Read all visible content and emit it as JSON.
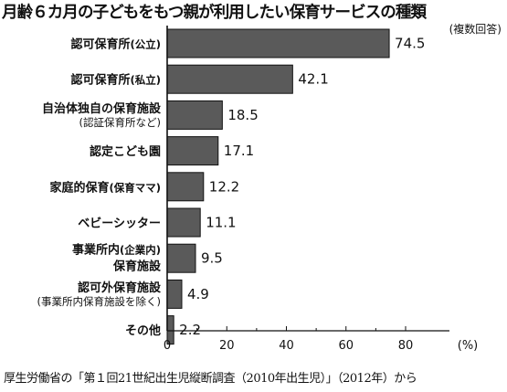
{
  "chart_data": {
    "type": "bar",
    "orientation": "horizontal",
    "title": "月齢６カ月の子どもをもつ親が利用したい保育サービスの種類",
    "note": "(複数回答)",
    "unit": "(%)",
    "xlim": [
      0,
      80
    ],
    "xticks": [
      "0",
      "20",
      "40",
      "60",
      "80"
    ],
    "categories": [
      {
        "main": "認可保育所",
        "sub": "(公立)",
        "value": 74.5,
        "value_label": "74.5"
      },
      {
        "main": "認可保育所",
        "sub": "(私立)",
        "value": 42.1,
        "value_label": "42.1"
      },
      {
        "main": "自治体独自の保育施設",
        "sub2": "(認証保育所など)",
        "value": 18.5,
        "value_label": "18.5"
      },
      {
        "main": "認定こども園",
        "value": 17.1,
        "value_label": "17.1"
      },
      {
        "main": "家庭的保育",
        "sub": "(保育ママ)",
        "value": 12.2,
        "value_label": "12.2"
      },
      {
        "main": "ベビーシッター",
        "value": 11.1,
        "value_label": "11.1"
      },
      {
        "main": "事業所内",
        "sub": "(企業内)",
        "main2": "保育施設",
        "value": 9.5,
        "value_label": "9.5"
      },
      {
        "main": "認可外保育施設",
        "sub2": "(事業所内保育施設を除く)",
        "value": 4.9,
        "value_label": "4.9"
      },
      {
        "main": "その他",
        "value": 2.2,
        "value_label": "2.2"
      }
    ],
    "source": "厚生労働省の「第１回21世紀出生児縦断調査（2010年出生児）」（2012年）から",
    "bar_color": "#5a5a5a",
    "bar_stroke": "#111111"
  }
}
